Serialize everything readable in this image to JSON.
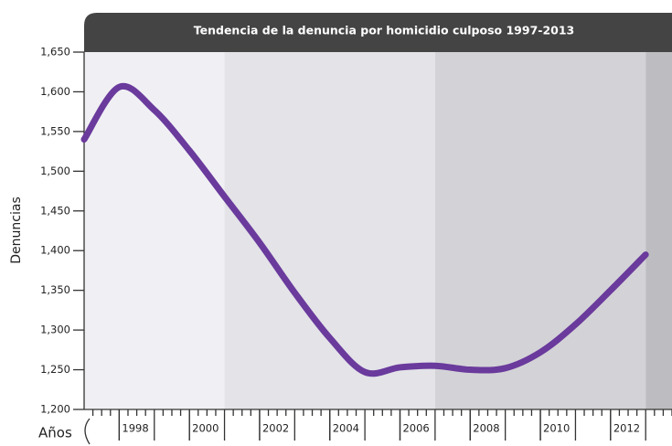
{
  "chart_data": {
    "type": "line",
    "title": "Tendencia de la denuncia por homicidio culposo 1997-2013",
    "ylabel": "Denuncias",
    "xlabel": "Años",
    "x": [
      1997,
      1998,
      1999,
      2000,
      2001,
      2002,
      2003,
      2004,
      2005,
      2006,
      2007,
      2008,
      2009,
      2010,
      2011,
      2012,
      2013
    ],
    "series": [
      {
        "name": "Denuncias",
        "color": "#6a3a9c",
        "values": [
          1540,
          1606,
          1577,
          1526,
          1468,
          1410,
          1347,
          1290,
          1247,
          1253,
          1255,
          1250,
          1252,
          1272,
          1307,
          1350,
          1395
        ]
      }
    ],
    "xlim": [
      1997,
      2013.75
    ],
    "xticks": [
      1998,
      2000,
      2002,
      2004,
      2006,
      2008,
      2010,
      2012
    ],
    "xtick_minor_step": 0.25,
    "ylim": [
      1200,
      1650
    ],
    "yticks": [
      {
        "value": 1200,
        "label": "1,200"
      },
      {
        "value": 1250,
        "label": "1,250"
      },
      {
        "value": 1300,
        "label": "1,300"
      },
      {
        "value": 1350,
        "label": "1,350"
      },
      {
        "value": 1400,
        "label": "1,400"
      },
      {
        "value": 1450,
        "label": "1,450"
      },
      {
        "value": 1500,
        "label": "1,500"
      },
      {
        "value": 1550,
        "label": "1,550"
      },
      {
        "value": 1600,
        "label": "1,600"
      },
      {
        "value": 1650,
        "label": "1,650"
      }
    ],
    "bands": [
      {
        "from": 1997,
        "to": 2001,
        "color": "#f0f0f4"
      },
      {
        "from": 2001,
        "to": 2007,
        "color": "#e3e3e8"
      },
      {
        "from": 2007,
        "to": 2013,
        "color": "#d3d3d7"
      },
      {
        "from": 2013,
        "to": 2013.75,
        "color": "#bdbdc1"
      }
    ]
  }
}
